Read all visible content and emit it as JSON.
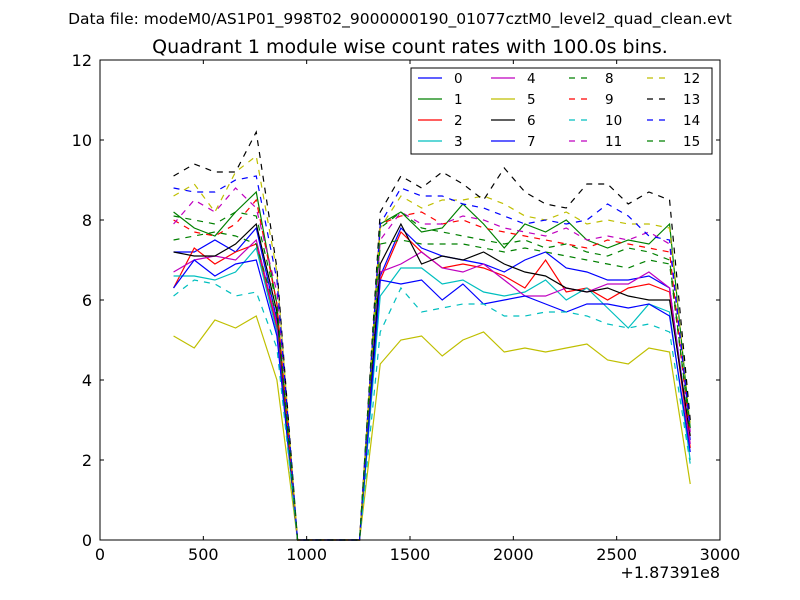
{
  "chart_data": {
    "type": "line",
    "supertitle": "Data file: modeM0/AS1P01_998T02_9000000190_01077cztM0_level2_quad_clean.evt",
    "title": "Quadrant 1 module wise count rates with 100.0s bins.",
    "xlabel": "",
    "ylabel": "",
    "x_offset_label": "+1.87391e8",
    "xlim": [
      0,
      3000
    ],
    "ylim": [
      0,
      12
    ],
    "xticks": [
      0,
      500,
      1000,
      1500,
      2000,
      2500,
      3000
    ],
    "yticks": [
      0,
      2,
      4,
      6,
      8,
      10,
      12
    ],
    "xtick_labels": [
      "0",
      "500",
      "1000",
      "1500",
      "2000",
      "2500",
      "3000"
    ],
    "ytick_labels": [
      "0",
      "2",
      "4",
      "6",
      "8",
      "10",
      "12"
    ],
    "grid": false,
    "legend_position": "top-right",
    "x": [
      356,
      456,
      556,
      656,
      756,
      856,
      956,
      1056,
      1156,
      1256,
      1356,
      1456,
      1556,
      1656,
      1756,
      1856,
      1956,
      2056,
      2156,
      2256,
      2356,
      2456,
      2556,
      2656,
      2756,
      2856
    ],
    "series": [
      {
        "name": "0",
        "color": "#0000ff",
        "dash": "solid",
        "values": [
          7.2,
          7.2,
          7.5,
          7.2,
          7.8,
          5.5,
          0,
          0,
          0,
          0,
          6.6,
          7.8,
          7.3,
          7.1,
          7.0,
          6.9,
          6.7,
          7.0,
          7.2,
          6.8,
          6.7,
          6.5,
          6.5,
          6.6,
          6.3,
          2.5
        ]
      },
      {
        "name": "1",
        "color": "#008000",
        "dash": "solid",
        "values": [
          8.2,
          7.8,
          7.6,
          8.2,
          8.7,
          5.9,
          0,
          0,
          0,
          0,
          7.9,
          8.2,
          7.7,
          7.8,
          8.4,
          7.9,
          7.3,
          7.9,
          7.7,
          8.0,
          7.5,
          7.3,
          7.5,
          7.4,
          7.9,
          2.8
        ]
      },
      {
        "name": "2",
        "color": "#ff0000",
        "dash": "solid",
        "values": [
          6.3,
          7.3,
          6.9,
          7.2,
          7.4,
          5.3,
          0,
          0,
          0,
          0,
          6.5,
          7.7,
          7.2,
          6.8,
          6.9,
          6.8,
          6.6,
          6.3,
          7.0,
          6.2,
          6.3,
          6.0,
          6.3,
          6.4,
          6.2,
          2.3
        ]
      },
      {
        "name": "3",
        "color": "#00bfbf",
        "dash": "solid",
        "values": [
          6.6,
          6.6,
          6.5,
          6.7,
          7.3,
          5.2,
          0,
          0,
          0,
          0,
          6.1,
          6.8,
          6.8,
          6.4,
          6.5,
          6.2,
          6.1,
          6.2,
          6.5,
          6.0,
          6.3,
          5.8,
          5.3,
          5.9,
          5.7,
          2.0
        ]
      },
      {
        "name": "4",
        "color": "#bf00bf",
        "dash": "solid",
        "values": [
          6.7,
          7.0,
          7.1,
          7.0,
          7.5,
          5.4,
          0,
          0,
          0,
          0,
          6.7,
          6.9,
          7.2,
          6.8,
          6.7,
          6.9,
          6.5,
          6.1,
          6.1,
          6.3,
          6.2,
          6.4,
          6.4,
          6.7,
          6.3,
          2.4
        ]
      },
      {
        "name": "5",
        "color": "#bfbf00",
        "dash": "solid",
        "values": [
          5.1,
          4.8,
          5.5,
          5.3,
          5.6,
          4.0,
          0,
          0,
          0,
          0,
          4.4,
          5.0,
          5.1,
          4.6,
          5.0,
          5.2,
          4.7,
          4.8,
          4.7,
          4.8,
          4.9,
          4.5,
          4.4,
          4.8,
          4.7,
          1.4
        ]
      },
      {
        "name": "6",
        "color": "#000000",
        "dash": "solid",
        "values": [
          7.2,
          7.1,
          7.1,
          7.4,
          7.9,
          5.7,
          0,
          0,
          0,
          0,
          6.9,
          7.9,
          6.9,
          7.1,
          7.0,
          7.2,
          6.9,
          6.7,
          6.6,
          6.3,
          6.2,
          6.3,
          6.1,
          6.0,
          6.0,
          2.6
        ]
      },
      {
        "name": "7",
        "color": "#0000ff",
        "dash": "solid",
        "values": [
          6.3,
          7.0,
          6.6,
          6.9,
          7.0,
          5.1,
          0,
          0,
          0,
          0,
          6.5,
          6.4,
          6.5,
          6.0,
          6.4,
          5.9,
          6.0,
          6.1,
          5.9,
          5.7,
          5.9,
          5.9,
          5.8,
          5.9,
          5.6,
          2.2
        ]
      },
      {
        "name": "8",
        "color": "#008000",
        "dash": "dashed",
        "values": [
          7.5,
          7.6,
          7.7,
          7.6,
          7.4,
          5.6,
          0,
          0,
          0,
          0,
          7.4,
          7.5,
          7.4,
          7.4,
          7.4,
          7.3,
          7.2,
          7.3,
          7.2,
          7.1,
          7.0,
          6.9,
          6.8,
          7.0,
          6.9,
          2.7
        ]
      },
      {
        "name": "9",
        "color": "#ff0000",
        "dash": "dashed",
        "values": [
          8.0,
          7.7,
          7.6,
          7.9,
          8.5,
          5.9,
          0,
          0,
          0,
          0,
          7.9,
          8.1,
          8.2,
          7.9,
          8.0,
          7.8,
          7.7,
          7.6,
          7.5,
          7.4,
          7.3,
          7.5,
          7.4,
          7.3,
          7.2,
          2.6
        ]
      },
      {
        "name": "10",
        "color": "#00bfbf",
        "dash": "dashed",
        "values": [
          6.1,
          6.5,
          6.4,
          6.1,
          6.2,
          4.8,
          0,
          0,
          0,
          0,
          5.2,
          6.3,
          5.7,
          5.8,
          5.9,
          5.9,
          5.6,
          5.6,
          5.7,
          5.7,
          5.6,
          5.4,
          5.3,
          5.4,
          5.2,
          1.9
        ]
      },
      {
        "name": "11",
        "color": "#bf00bf",
        "dash": "dashed",
        "values": [
          7.9,
          8.5,
          8.2,
          8.8,
          8.3,
          6.2,
          0,
          0,
          0,
          0,
          7.5,
          8.2,
          7.9,
          7.9,
          8.1,
          8.0,
          7.8,
          7.7,
          7.6,
          7.8,
          7.5,
          7.6,
          7.5,
          7.7,
          7.4,
          2.7
        ]
      },
      {
        "name": "12",
        "color": "#bfbf00",
        "dash": "dashed",
        "values": [
          8.6,
          8.9,
          8.2,
          9.2,
          9.6,
          6.7,
          0,
          0,
          0,
          0,
          7.8,
          8.6,
          8.3,
          8.5,
          8.5,
          8.6,
          8.4,
          8.1,
          8.0,
          8.2,
          7.9,
          8.0,
          7.9,
          7.9,
          7.8,
          2.9
        ]
      },
      {
        "name": "13",
        "color": "#000000",
        "dash": "dashed",
        "values": [
          9.1,
          9.4,
          9.2,
          9.2,
          10.2,
          6.8,
          0,
          0,
          0,
          0,
          8.2,
          9.1,
          8.8,
          9.2,
          8.9,
          8.5,
          9.3,
          8.7,
          8.4,
          8.3,
          8.9,
          8.9,
          8.4,
          8.7,
          8.5,
          3.0
        ]
      },
      {
        "name": "14",
        "color": "#0000ff",
        "dash": "dashed",
        "values": [
          8.8,
          8.7,
          8.7,
          9.0,
          9.1,
          6.5,
          0,
          0,
          0,
          0,
          7.9,
          8.8,
          8.6,
          8.6,
          8.4,
          8.3,
          8.1,
          7.9,
          8.0,
          7.9,
          8.0,
          8.4,
          8.1,
          7.6,
          7.5,
          2.8
        ]
      },
      {
        "name": "15",
        "color": "#008000",
        "dash": "dashed",
        "values": [
          8.1,
          8.0,
          7.9,
          8.2,
          8.1,
          5.9,
          0,
          0,
          0,
          0,
          7.8,
          8.2,
          7.8,
          7.7,
          7.6,
          7.5,
          7.4,
          7.5,
          7.3,
          7.4,
          7.2,
          7.1,
          7.3,
          7.2,
          7.0,
          2.7
        ]
      }
    ]
  }
}
